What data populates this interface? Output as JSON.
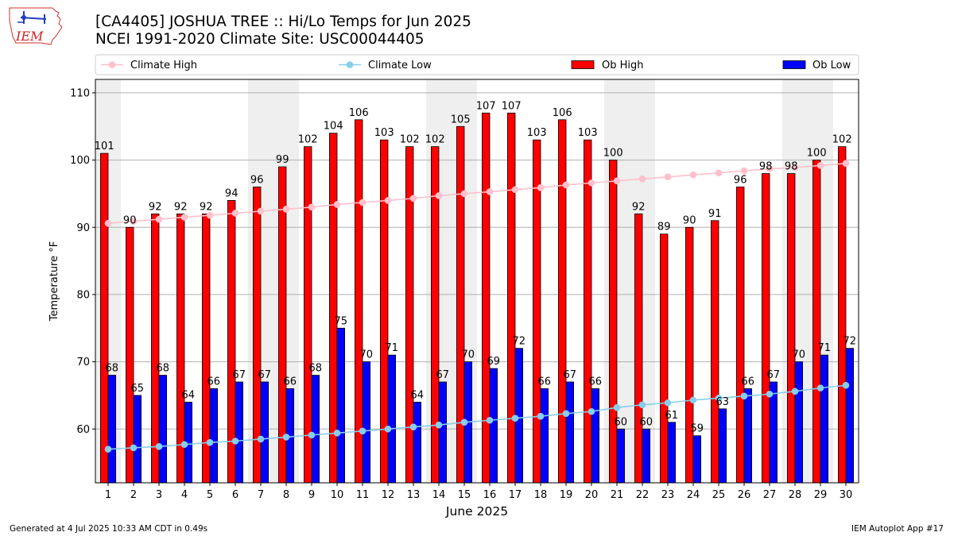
{
  "header": {
    "title": "[CA4405] JOSHUA TREE :: Hi/Lo Temps for Jun 2025",
    "subtitle": "NCEI 1991-2020 Climate Site: USC00044405",
    "logo_text": "IEM"
  },
  "footer": {
    "generated": "Generated at 4 Jul 2025 10:33 AM CDT in 0.49s",
    "app": "IEM Autoplot App #17"
  },
  "chart_data": {
    "type": "bar",
    "xlabel": "June 2025",
    "ylabel": "Temperature °F",
    "ylim": [
      52,
      112
    ],
    "yticks": [
      60,
      70,
      80,
      90,
      100,
      110
    ],
    "grid": true,
    "legend_placement": "top",
    "categories": [
      "1",
      "2",
      "3",
      "4",
      "5",
      "6",
      "7",
      "8",
      "9",
      "10",
      "11",
      "12",
      "13",
      "14",
      "15",
      "16",
      "17",
      "18",
      "19",
      "20",
      "21",
      "22",
      "23",
      "24",
      "25",
      "26",
      "27",
      "28",
      "29",
      "30"
    ],
    "weekend_shading": [
      [
        1,
        1
      ],
      [
        7,
        8
      ],
      [
        14,
        15
      ],
      [
        21,
        22
      ],
      [
        28,
        29
      ]
    ],
    "series": [
      {
        "name": "Climate High",
        "kind": "line",
        "color": "#ffc0cb",
        "values": [
          90.6,
          90.9,
          91.2,
          91.5,
          91.8,
          92.1,
          92.4,
          92.7,
          93.0,
          93.4,
          93.7,
          94.0,
          94.3,
          94.7,
          95.0,
          95.3,
          95.6,
          95.9,
          96.3,
          96.6,
          96.9,
          97.2,
          97.5,
          97.8,
          98.1,
          98.4,
          98.7,
          98.9,
          99.2,
          99.5
        ]
      },
      {
        "name": "Climate Low",
        "kind": "line",
        "color": "#87ceeb",
        "values": [
          57.0,
          57.2,
          57.4,
          57.7,
          58.0,
          58.2,
          58.5,
          58.8,
          59.1,
          59.4,
          59.7,
          60.0,
          60.3,
          60.6,
          61.0,
          61.3,
          61.6,
          61.9,
          62.3,
          62.6,
          63.2,
          63.6,
          63.9,
          64.3,
          64.6,
          64.9,
          65.2,
          65.6,
          66.1,
          66.5
        ]
      },
      {
        "name": "Ob High",
        "kind": "bar",
        "color": "#ff0000",
        "values": [
          101,
          90,
          92,
          92,
          92,
          94,
          96,
          99,
          102,
          104,
          106,
          103,
          102,
          102,
          105,
          107,
          107,
          103,
          106,
          103,
          100,
          92,
          89,
          90,
          91,
          96,
          98,
          98,
          100,
          102
        ]
      },
      {
        "name": "Ob Low",
        "kind": "bar",
        "color": "#0000ff",
        "values": [
          68,
          65,
          68,
          64,
          66,
          67,
          67,
          66,
          68,
          75,
          70,
          71,
          64,
          67,
          70,
          69,
          72,
          66,
          67,
          66,
          60,
          60,
          61,
          59,
          63,
          66,
          67,
          70,
          71,
          72
        ]
      }
    ]
  }
}
